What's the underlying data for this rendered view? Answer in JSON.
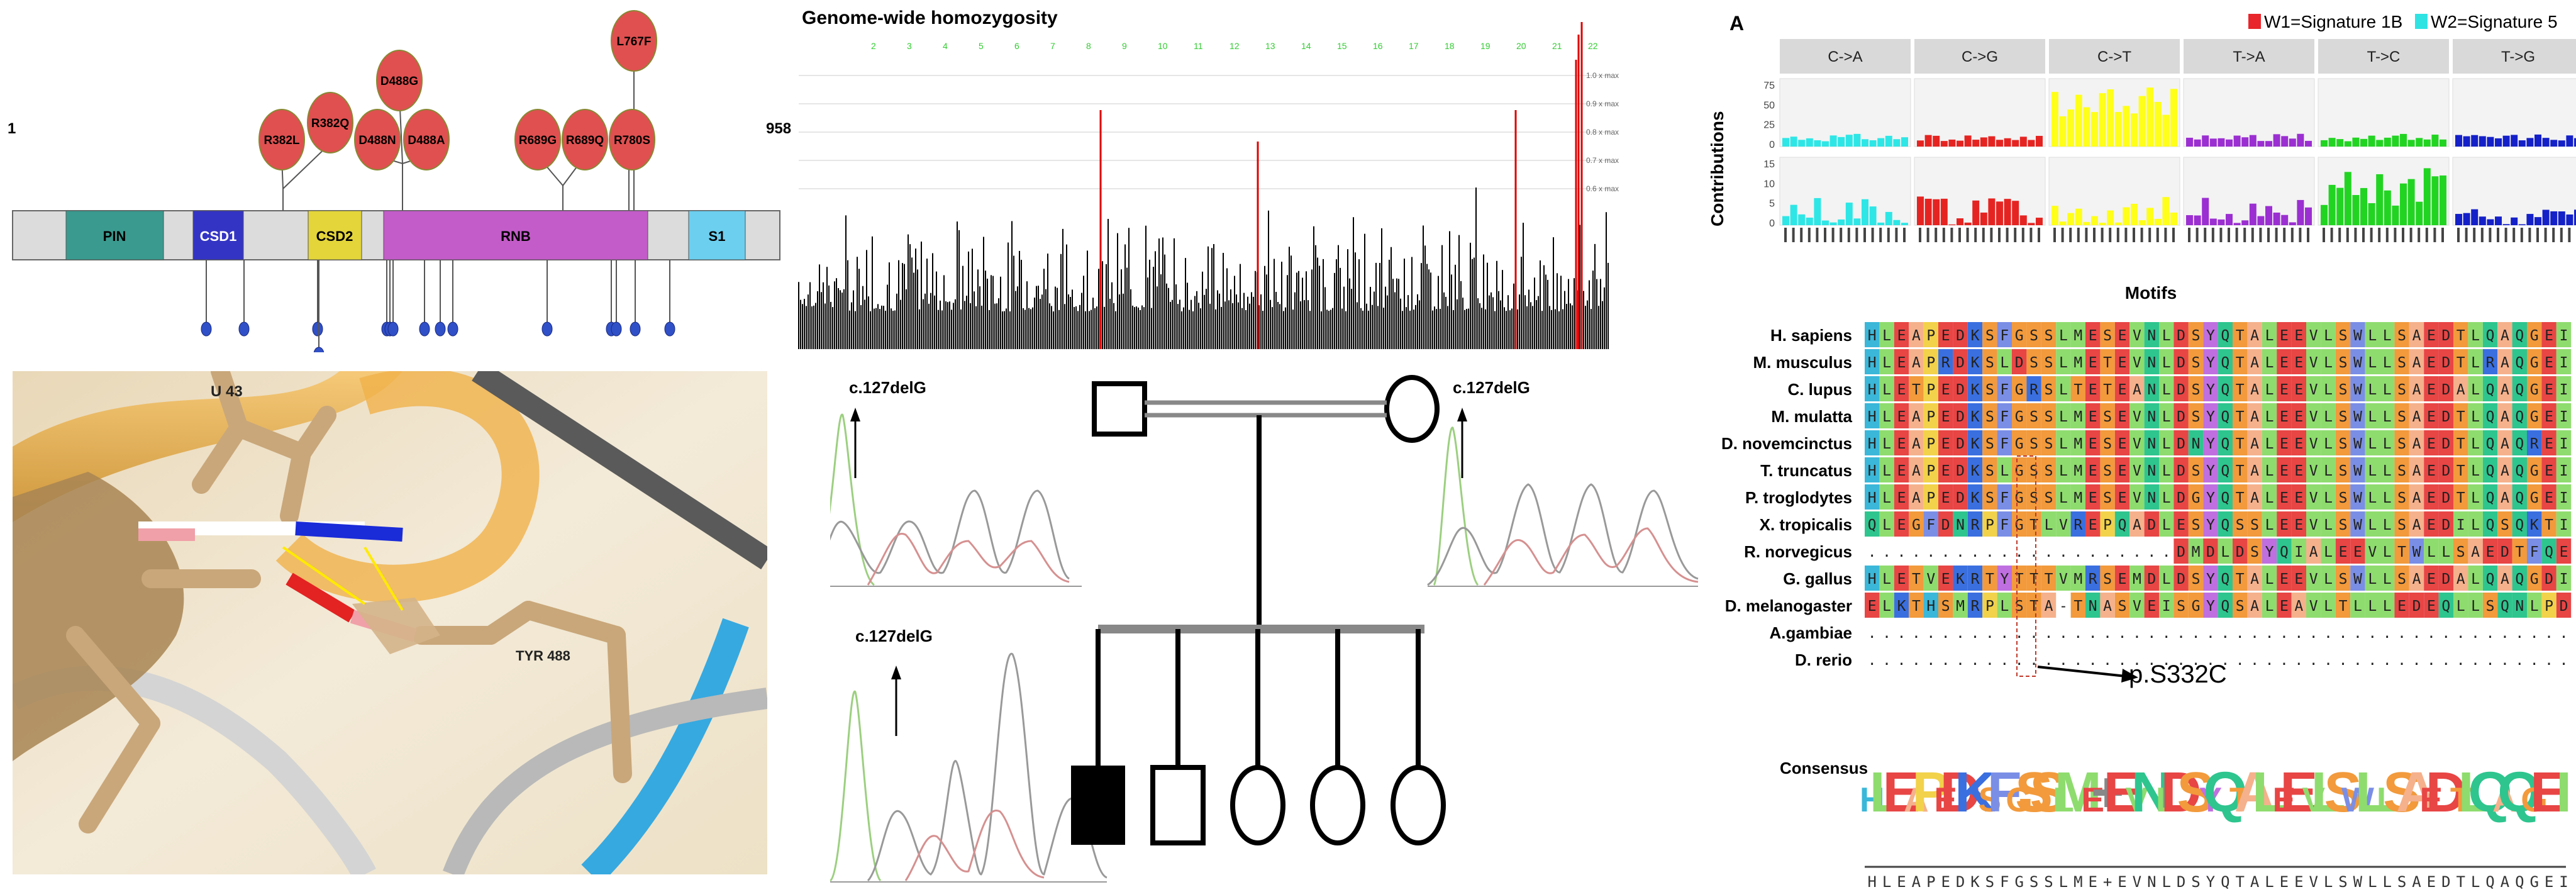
{
  "protein": {
    "start": "1",
    "end": "958",
    "domains": [
      "PIN",
      "CSD1",
      "CSD2",
      "RNB",
      "S1"
    ],
    "mutations": [
      "R382L",
      "R382Q",
      "D488G",
      "D488N",
      "D488A",
      "R689G",
      "R689Q",
      "R780S",
      "L767F"
    ]
  },
  "structure": {
    "labels": [
      "U 43",
      "TYR 488"
    ]
  },
  "homozygosity": {
    "title": "Genome-wide homozygosity",
    "chromosomes": [
      "2",
      "3",
      "4",
      "5",
      "6",
      "7",
      "8",
      "9",
      "10",
      "11",
      "12",
      "13",
      "14",
      "15",
      "16",
      "17",
      "18",
      "19",
      "20",
      "21",
      "22"
    ],
    "ylabels": [
      "1.0 x max",
      "0.9 x max",
      "0.8 x max",
      "0.7 x max",
      "0.6 x max"
    ]
  },
  "sanger": {
    "label": "c.127delG"
  },
  "signatures": {
    "panel_letter": "A",
    "legend": [
      "W1=Signature 1B",
      "W2=Signature 5"
    ],
    "legend_colors": [
      "#e8262b",
      "#2fe3e3"
    ],
    "types": [
      "C->A",
      "C->G",
      "C->T",
      "T->A",
      "T->C",
      "T->G"
    ],
    "type_colors": [
      "#2ee6e6",
      "#e52421",
      "#ffff1a",
      "#9b2fd1",
      "#22d422",
      "#1420c8"
    ],
    "rows": [
      "W1",
      "W2"
    ],
    "ylabel": "Contributions",
    "xlabel": "Motifs",
    "yticks_w1": [
      "75",
      "50",
      "25",
      "0"
    ],
    "yticks_w2": [
      "15",
      "10",
      "5",
      "0"
    ]
  },
  "alignment": {
    "species": [
      "H. sapiens",
      "M. musculus",
      "C. lupus",
      "M. mulatta",
      "D. novemcinctus",
      "T. truncatus",
      "P. troglodytes",
      "X. tropicalis",
      "R. norvegicus",
      "G. gallus",
      "D. melanogaster",
      "A.gambiae",
      "D. rerio"
    ],
    "sequences": [
      "HLEAPEDKSFGSSLMESEVNLDSYQTALEEVLSWLLSAEDTLQAQGEIS",
      "HLEAPRDKSLDSSLMETEVNLDSYQTALEEVLSWLLSAEDTLRAQGEIS",
      "HLETPEDKSFGRSLTETEANLDSYQTALEEVLSWLLSAEDALQAQGEIS",
      "HLEAPEDKSFGSSLMESEVNLDSYQTALEEVLSWLLSAEDTLQAQGEIS",
      "HLEAPEDKSFGSSLMESEVNLDNYQTALEEVLSWLLSAEDTLQAQREIS",
      "HLEAPEDKSLGSSLMESEVNLDSYQTALEEVLSWLLSAEDTLQAQGEIS",
      "HLEAPEDKSFGSSLMESEVNLDGYQTALEEVLSWLLSAEDTLQAQGEIS",
      "QLEGFDNRPFGTLVREPQADLESYQSSLEEVLSWLLSAEDILQSQKTIS",
      ".....................DMDLDSYQIALEEVLTWLLSAEDTFQEQDDIS",
      "HLETVEKRTYTTTVMRSEMDLDSYQTALEEVLSWLLSAEDALQAQGDIS",
      "ELKTHSMRPLSTA-TNASVEISGYQSALEAVLTLLLEDEQLLSQNLPDP",
      ".................................................",
      "................................................."
    ],
    "mutation_label": "p.S332C",
    "consensus_label": "Consensus",
    "consensus": "HLEAPEDKSFGSSLME+EVNLDSYQTALEEVLSWLLSAEDTLQAQGEIS"
  }
}
